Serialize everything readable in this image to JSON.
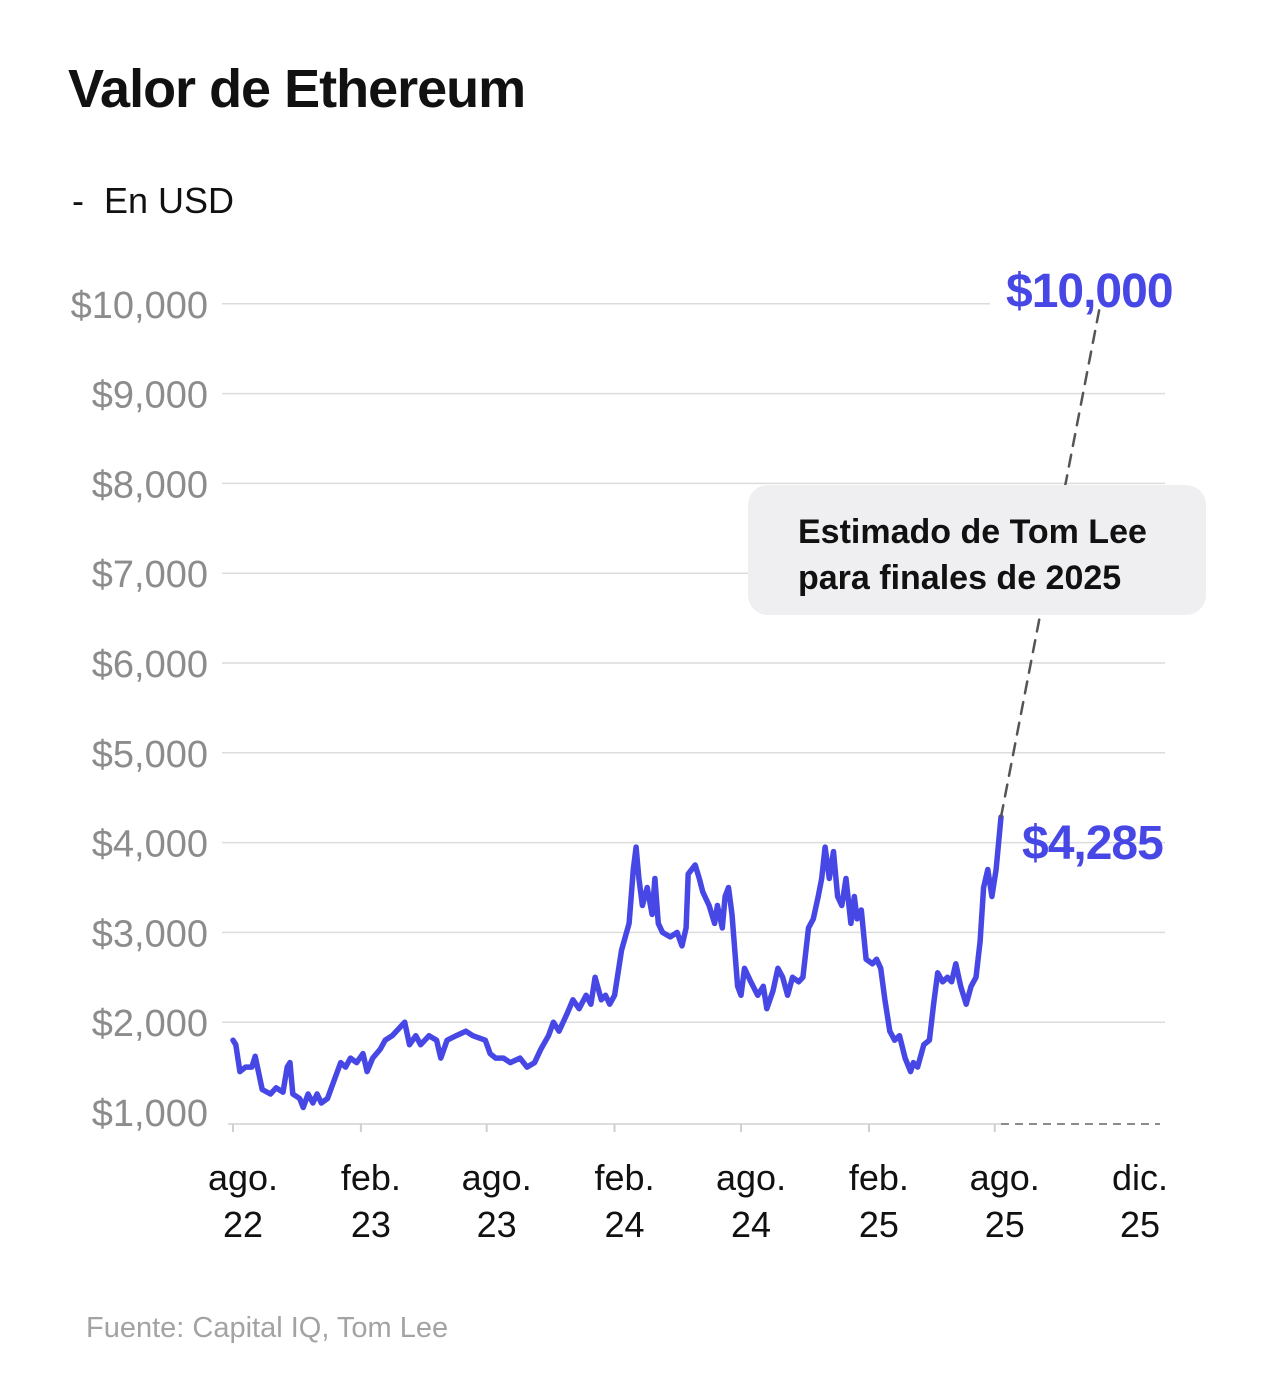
{
  "chart_data": {
    "type": "line",
    "title": "Valor de Ethereum",
    "subtitle": "-  En USD",
    "source": "Fuente: Capital IQ, Tom Lee",
    "ylim": [
      1000,
      10000
    ],
    "grid": true,
    "y_ticks": [
      {
        "value": 10000,
        "label": "$10,000"
      },
      {
        "value": 9000,
        "label": "$9,000"
      },
      {
        "value": 8000,
        "label": "$8,000"
      },
      {
        "value": 7000,
        "label": "$7,000"
      },
      {
        "value": 6000,
        "label": "$6,000"
      },
      {
        "value": 5000,
        "label": "$5,000"
      },
      {
        "value": 4000,
        "label": "$4,000"
      },
      {
        "value": 3000,
        "label": "$3,000"
      },
      {
        "value": 2000,
        "label": "$2,000"
      },
      {
        "value": 1000,
        "label": "$1,000"
      }
    ],
    "x_ticks": [
      {
        "date": "2022-08-01",
        "label": [
          "ago.",
          "22"
        ]
      },
      {
        "date": "2023-02-01",
        "label": [
          "feb.",
          "23"
        ]
      },
      {
        "date": "2023-08-01",
        "label": [
          "ago.",
          "23"
        ]
      },
      {
        "date": "2024-02-01",
        "label": [
          "feb.",
          "24"
        ]
      },
      {
        "date": "2024-08-01",
        "label": [
          "ago.",
          "24"
        ]
      },
      {
        "date": "2025-02-01",
        "label": [
          "feb.",
          "25"
        ]
      },
      {
        "date": "2025-08-01",
        "label": [
          "ago.",
          "25"
        ]
      },
      {
        "date": "2025-12-31",
        "label": [
          "dic.",
          "25"
        ]
      }
    ],
    "series": [
      {
        "name": "Ethereum",
        "color": "#4747e6",
        "points": [
          [
            "2022-08-01",
            1800
          ],
          [
            "2022-08-05",
            1750
          ],
          [
            "2022-08-11",
            1450
          ],
          [
            "2022-08-19",
            1500
          ],
          [
            "2022-08-28",
            1500
          ],
          [
            "2022-09-02",
            1620
          ],
          [
            "2022-09-12",
            1250
          ],
          [
            "2022-09-24",
            1200
          ],
          [
            "2022-10-02",
            1270
          ],
          [
            "2022-10-12",
            1220
          ],
          [
            "2022-10-18",
            1500
          ],
          [
            "2022-10-22",
            1550
          ],
          [
            "2022-10-26",
            1200
          ],
          [
            "2022-11-05",
            1150
          ],
          [
            "2022-11-10",
            1050
          ],
          [
            "2022-11-17",
            1200
          ],
          [
            "2022-11-24",
            1100
          ],
          [
            "2022-11-30",
            1200
          ],
          [
            "2022-12-06",
            1100
          ],
          [
            "2022-12-15",
            1150
          ],
          [
            "2022-12-22",
            1300
          ],
          [
            "2023-01-03",
            1550
          ],
          [
            "2023-01-10",
            1500
          ],
          [
            "2023-01-17",
            1600
          ],
          [
            "2023-01-26",
            1550
          ],
          [
            "2023-02-04",
            1650
          ],
          [
            "2023-02-10",
            1450
          ],
          [
            "2023-02-18",
            1600
          ],
          [
            "2023-03-01",
            1700
          ],
          [
            "2023-03-08",
            1800
          ],
          [
            "2023-03-18",
            1850
          ],
          [
            "2023-04-05",
            2000
          ],
          [
            "2023-04-12",
            1750
          ],
          [
            "2023-04-21",
            1850
          ],
          [
            "2023-04-28",
            1750
          ],
          [
            "2023-05-10",
            1850
          ],
          [
            "2023-05-21",
            1800
          ],
          [
            "2023-05-27",
            1600
          ],
          [
            "2023-06-05",
            1800
          ],
          [
            "2023-06-18",
            1850
          ],
          [
            "2023-07-02",
            1900
          ],
          [
            "2023-07-12",
            1850
          ],
          [
            "2023-07-30",
            1800
          ],
          [
            "2023-08-06",
            1650
          ],
          [
            "2023-08-14",
            1600
          ],
          [
            "2023-08-25",
            1600
          ],
          [
            "2023-09-04",
            1550
          ],
          [
            "2023-09-18",
            1600
          ],
          [
            "2023-09-28",
            1500
          ],
          [
            "2023-10-09",
            1550
          ],
          [
            "2023-10-18",
            1700
          ],
          [
            "2023-10-29",
            1850
          ],
          [
            "2023-11-05",
            2000
          ],
          [
            "2023-11-13",
            1900
          ],
          [
            "2023-11-25",
            2100
          ],
          [
            "2023-12-03",
            2250
          ],
          [
            "2023-12-12",
            2150
          ],
          [
            "2023-12-22",
            2300
          ],
          [
            "2023-12-29",
            2200
          ],
          [
            "2024-01-04",
            2500
          ],
          [
            "2024-01-13",
            2250
          ],
          [
            "2024-01-19",
            2300
          ],
          [
            "2024-01-25",
            2200
          ],
          [
            "2024-02-01",
            2300
          ],
          [
            "2024-02-11",
            2800
          ],
          [
            "2024-02-22",
            3100
          ],
          [
            "2024-02-28",
            3700
          ],
          [
            "2024-03-03",
            3950
          ],
          [
            "2024-03-07",
            3600
          ],
          [
            "2024-03-12",
            3300
          ],
          [
            "2024-03-19",
            3500
          ],
          [
            "2024-03-26",
            3200
          ],
          [
            "2024-03-30",
            3600
          ],
          [
            "2024-04-04",
            3100
          ],
          [
            "2024-04-10",
            3000
          ],
          [
            "2024-04-21",
            2950
          ],
          [
            "2024-05-01",
            3000
          ],
          [
            "2024-05-08",
            2850
          ],
          [
            "2024-05-14",
            3050
          ],
          [
            "2024-05-17",
            3650
          ],
          [
            "2024-05-27",
            3750
          ],
          [
            "2024-06-02",
            3600
          ],
          [
            "2024-06-07",
            3450
          ],
          [
            "2024-06-16",
            3300
          ],
          [
            "2024-06-24",
            3100
          ],
          [
            "2024-06-28",
            3300
          ],
          [
            "2024-07-05",
            3050
          ],
          [
            "2024-07-09",
            3400
          ],
          [
            "2024-07-14",
            3500
          ],
          [
            "2024-07-19",
            3200
          ],
          [
            "2024-07-27",
            2400
          ],
          [
            "2024-08-01",
            2300
          ],
          [
            "2024-08-06",
            2600
          ],
          [
            "2024-08-15",
            2450
          ],
          [
            "2024-08-25",
            2300
          ],
          [
            "2024-09-02",
            2400
          ],
          [
            "2024-09-07",
            2150
          ],
          [
            "2024-09-16",
            2350
          ],
          [
            "2024-09-23",
            2600
          ],
          [
            "2024-09-30",
            2500
          ],
          [
            "2024-10-07",
            2300
          ],
          [
            "2024-10-14",
            2500
          ],
          [
            "2024-10-23",
            2450
          ],
          [
            "2024-10-29",
            2500
          ],
          [
            "2024-11-06",
            3050
          ],
          [
            "2024-11-13",
            3150
          ],
          [
            "2024-11-20",
            3400
          ],
          [
            "2024-11-25",
            3600
          ],
          [
            "2024-11-30",
            3950
          ],
          [
            "2024-12-06",
            3600
          ],
          [
            "2024-12-12",
            3900
          ],
          [
            "2024-12-18",
            3400
          ],
          [
            "2024-12-24",
            3300
          ],
          [
            "2024-12-30",
            3600
          ],
          [
            "2025-01-06",
            3100
          ],
          [
            "2025-01-11",
            3400
          ],
          [
            "2025-01-15",
            3150
          ],
          [
            "2025-01-21",
            3250
          ],
          [
            "2025-01-28",
            2700
          ],
          [
            "2025-02-06",
            2650
          ],
          [
            "2025-02-12",
            2700
          ],
          [
            "2025-02-18",
            2600
          ],
          [
            "2025-02-24",
            2250
          ],
          [
            "2025-03-03",
            1900
          ],
          [
            "2025-03-10",
            1800
          ],
          [
            "2025-03-17",
            1850
          ],
          [
            "2025-03-25",
            1600
          ],
          [
            "2025-04-02",
            1450
          ],
          [
            "2025-04-06",
            1550
          ],
          [
            "2025-04-12",
            1500
          ],
          [
            "2025-04-21",
            1750
          ],
          [
            "2025-04-29",
            1800
          ],
          [
            "2025-05-05",
            2200
          ],
          [
            "2025-05-11",
            2550
          ],
          [
            "2025-05-18",
            2450
          ],
          [
            "2025-05-25",
            2500
          ],
          [
            "2025-05-31",
            2450
          ],
          [
            "2025-06-06",
            2650
          ],
          [
            "2025-06-13",
            2400
          ],
          [
            "2025-06-21",
            2200
          ],
          [
            "2025-06-28",
            2400
          ],
          [
            "2025-07-05",
            2500
          ],
          [
            "2025-07-11",
            2900
          ],
          [
            "2025-07-16",
            3500
          ],
          [
            "2025-07-22",
            3700
          ],
          [
            "2025-07-28",
            3400
          ],
          [
            "2025-08-03",
            3700
          ],
          [
            "2025-08-10",
            4285
          ]
        ]
      },
      {
        "name": "Estimado de Tom Lee",
        "style": "dashed",
        "color": "#555555",
        "points": [
          [
            "2025-08-10",
            4285
          ],
          [
            "2025-12-31",
            10000
          ]
        ]
      }
    ],
    "annotations": {
      "current_value": "$4,285",
      "target_value": "$10,000",
      "callout_line1": "Estimado de Tom Lee",
      "callout_line2": "para finales de 2025"
    }
  }
}
